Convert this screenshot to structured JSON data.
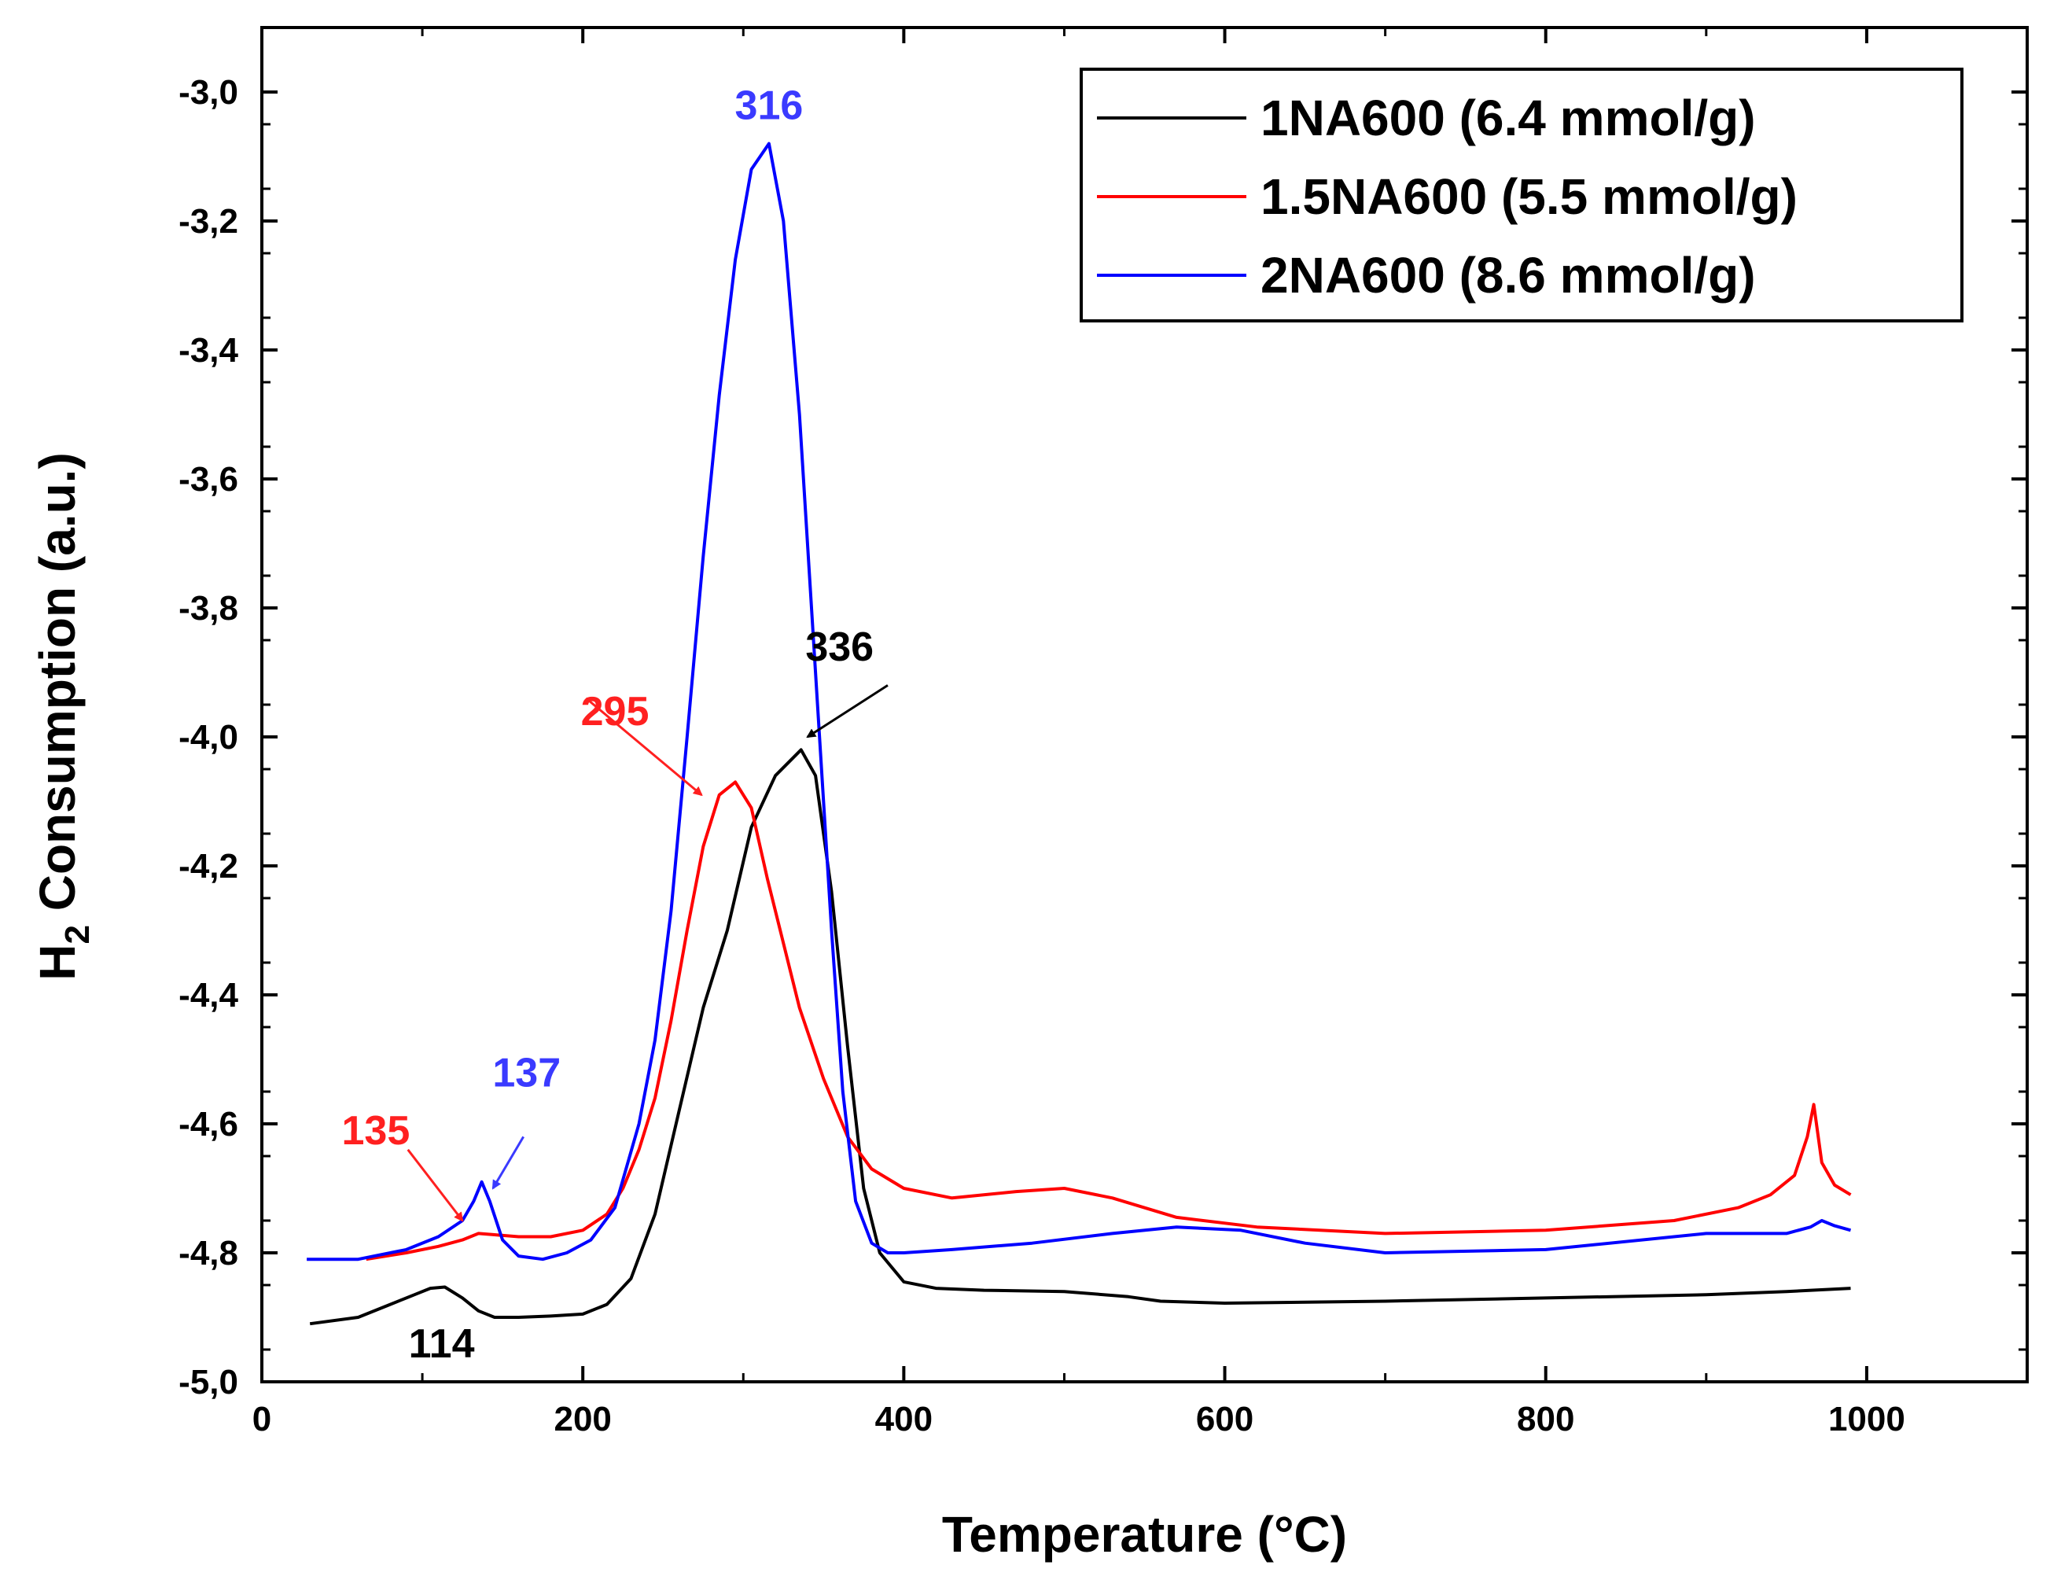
{
  "chart_data": {
    "type": "line",
    "title": "",
    "xlabel": "Temperature (°C)",
    "ylabel_main": "H",
    "ylabel_sub": "2",
    "ylabel_rest": " Consumption (a.u.)",
    "xlim": [
      0,
      1100
    ],
    "ylim": [
      -5.0,
      -2.9
    ],
    "x_ticks": [
      0,
      200,
      400,
      600,
      800,
      1000
    ],
    "x_tick_labels": [
      "0",
      "200",
      "400",
      "600",
      "800",
      "1000"
    ],
    "y_ticks": [
      -5.0,
      -4.8,
      -4.6,
      -4.4,
      -4.2,
      -4.0,
      -3.8,
      -3.6,
      -3.4,
      -3.2,
      -3.0
    ],
    "y_tick_labels": [
      "-5,0",
      "-4,8",
      "-4,6",
      "-4,4",
      "-4,2",
      "-4,0",
      "-3,8",
      "-3,6",
      "-3,4",
      "-3,2",
      "-3,0"
    ],
    "legend_position": "top-right",
    "series": [
      {
        "name": "1NA600 (6.4 mmol/g)",
        "color": "#000000",
        "x": [
          30,
          60,
          80,
          95,
          105,
          114,
          125,
          135,
          145,
          160,
          180,
          200,
          215,
          230,
          245,
          260,
          275,
          290,
          305,
          320,
          336,
          345,
          355,
          365,
          375,
          385,
          400,
          420,
          450,
          500,
          540,
          560,
          600,
          700,
          800,
          900,
          950,
          990
        ],
        "y": [
          -4.91,
          -4.9,
          -4.88,
          -4.865,
          -4.855,
          -4.853,
          -4.87,
          -4.89,
          -4.9,
          -4.9,
          -4.898,
          -4.895,
          -4.88,
          -4.84,
          -4.74,
          -4.58,
          -4.42,
          -4.3,
          -4.14,
          -4.06,
          -4.02,
          -4.06,
          -4.24,
          -4.48,
          -4.7,
          -4.8,
          -4.845,
          -4.855,
          -4.858,
          -4.86,
          -4.868,
          -4.875,
          -4.878,
          -4.875,
          -4.87,
          -4.865,
          -4.86,
          -4.855
        ]
      },
      {
        "name": "1.5NA600 (5.5 mmol/g)",
        "color": "#ff0000",
        "x": [
          65,
          90,
          110,
          125,
          135,
          145,
          160,
          180,
          200,
          215,
          225,
          235,
          245,
          255,
          265,
          275,
          285,
          295,
          305,
          315,
          325,
          335,
          350,
          365,
          380,
          400,
          430,
          470,
          500,
          530,
          570,
          620,
          700,
          800,
          880,
          920,
          940,
          955,
          963,
          967,
          972,
          980,
          990
        ],
        "y": [
          -4.81,
          -4.8,
          -4.79,
          -4.78,
          -4.77,
          -4.772,
          -4.775,
          -4.775,
          -4.765,
          -4.74,
          -4.7,
          -4.64,
          -4.56,
          -4.44,
          -4.3,
          -4.17,
          -4.09,
          -4.07,
          -4.11,
          -4.22,
          -4.32,
          -4.42,
          -4.53,
          -4.62,
          -4.67,
          -4.7,
          -4.715,
          -4.705,
          -4.7,
          -4.715,
          -4.745,
          -4.76,
          -4.77,
          -4.765,
          -4.75,
          -4.73,
          -4.71,
          -4.68,
          -4.62,
          -4.57,
          -4.66,
          -4.695,
          -4.71
        ]
      },
      {
        "name": "2NA600 (8.6 mmol/g)",
        "color": "#0000ff",
        "x": [
          28,
          60,
          90,
          110,
          125,
          132,
          137,
          142,
          150,
          160,
          175,
          190,
          205,
          220,
          235,
          245,
          255,
          265,
          275,
          285,
          295,
          305,
          316,
          325,
          335,
          345,
          355,
          362,
          370,
          380,
          390,
          400,
          430,
          480,
          530,
          570,
          610,
          650,
          700,
          800,
          900,
          950,
          965,
          972,
          980,
          990
        ],
        "y": [
          -4.81,
          -4.81,
          -4.795,
          -4.775,
          -4.75,
          -4.72,
          -4.69,
          -4.72,
          -4.78,
          -4.805,
          -4.81,
          -4.8,
          -4.78,
          -4.73,
          -4.6,
          -4.47,
          -4.27,
          -4.0,
          -3.72,
          -3.47,
          -3.26,
          -3.12,
          -3.08,
          -3.2,
          -3.5,
          -3.9,
          -4.3,
          -4.55,
          -4.72,
          -4.785,
          -4.8,
          -4.8,
          -4.795,
          -4.785,
          -4.77,
          -4.76,
          -4.765,
          -4.785,
          -4.8,
          -4.795,
          -4.77,
          -4.77,
          -4.76,
          -4.75,
          -4.758,
          -4.765
        ]
      }
    ],
    "annotations": [
      {
        "text": "316",
        "color": "#3a3aff",
        "x": 316,
        "y": -3.02,
        "arrow": false
      },
      {
        "text": "336",
        "color": "#000000",
        "x": 360,
        "y": -3.86,
        "arrow": true,
        "arrow_from": [
          390,
          -3.92
        ],
        "arrow_to": [
          340,
          -4.0
        ]
      },
      {
        "text": "295",
        "color": "#ff2020",
        "x": 220,
        "y": -3.96,
        "arrow": true,
        "arrow_from": [
          202,
          -3.94
        ],
        "arrow_to": [
          274,
          -4.09
        ]
      },
      {
        "text": "137",
        "color": "#3a3aff",
        "x": 165,
        "y": -4.52,
        "arrow": true,
        "arrow_from": [
          163,
          -4.62
        ],
        "arrow_to": [
          144,
          -4.7
        ]
      },
      {
        "text": "135",
        "color": "#ff2020",
        "x": 71,
        "y": -4.61,
        "arrow": true,
        "arrow_from": [
          91,
          -4.64
        ],
        "arrow_to": [
          125,
          -4.75
        ]
      },
      {
        "text": "114",
        "color": "#000000",
        "x": 112,
        "y": -4.94,
        "arrow": false
      }
    ]
  }
}
